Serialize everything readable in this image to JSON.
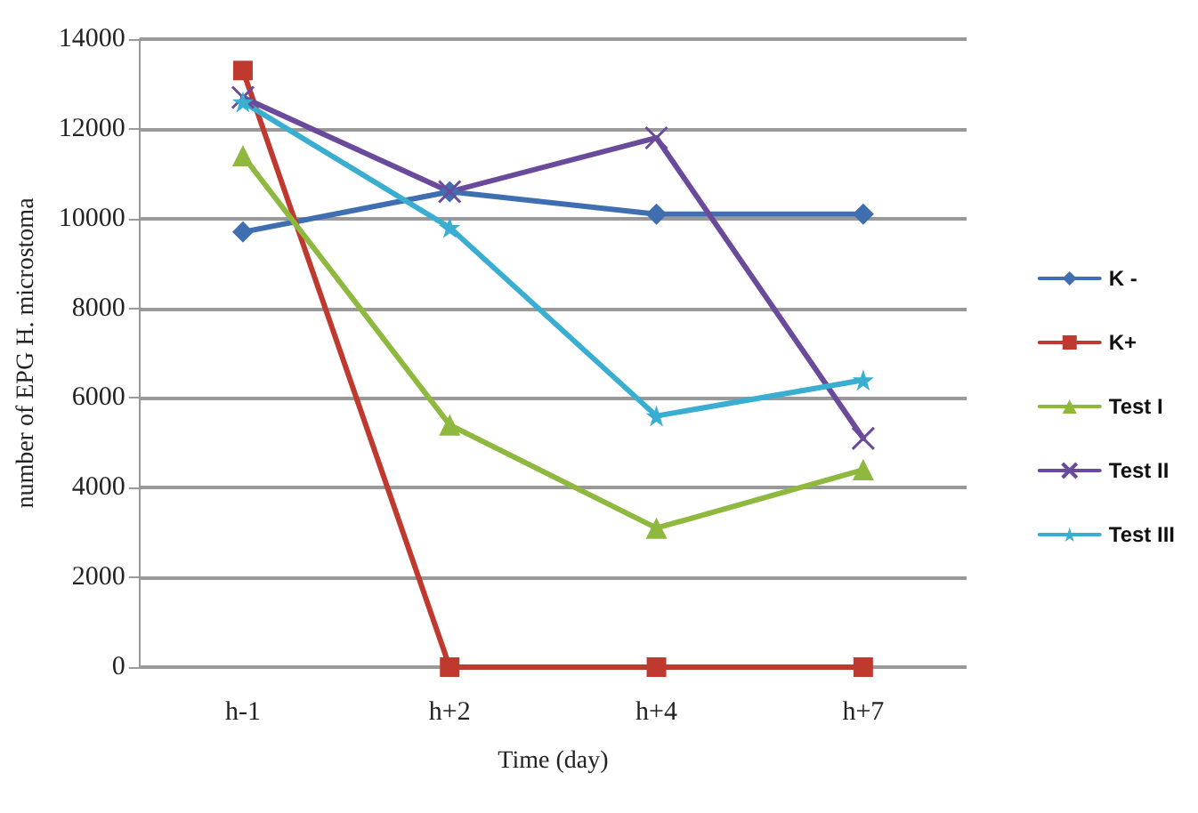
{
  "chart_data": {
    "type": "line",
    "xlabel": "Time (day)",
    "ylabel": "number of EPG H. microstoma",
    "categories": [
      "h-1",
      "h+2",
      "h+4",
      "h+7"
    ],
    "series": [
      {
        "name": "K -",
        "color": "#3f6fb0",
        "marker": "diamond",
        "values": [
          9700,
          10600,
          10100,
          10100
        ]
      },
      {
        "name": "K+",
        "color": "#c0392f",
        "marker": "square",
        "values": [
          13300,
          0,
          0,
          0
        ]
      },
      {
        "name": "Test I",
        "color": "#8fb83f",
        "marker": "triangle",
        "values": [
          11400,
          5400,
          3100,
          4400
        ]
      },
      {
        "name": "Test II",
        "color": "#6a4a9a",
        "marker": "cross",
        "values": [
          12700,
          10600,
          11800,
          5100
        ]
      },
      {
        "name": "Test III",
        "color": "#3aaed0",
        "marker": "star",
        "values": [
          12600,
          9800,
          5600,
          6400
        ]
      }
    ],
    "ylim": [
      0,
      14000
    ],
    "yticks": [
      0,
      2000,
      4000,
      6000,
      8000,
      10000,
      12000,
      14000
    ],
    "grid": "y",
    "legend": "right"
  }
}
